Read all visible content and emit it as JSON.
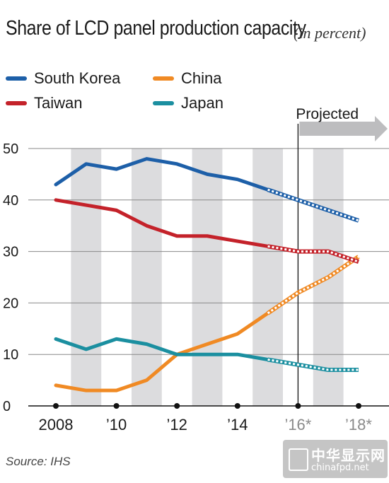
{
  "title": "Share of LCD panel production capacity",
  "subtitle": "(in percent)",
  "source": "Source: IHS",
  "projected_label": "Projected",
  "watermark": {
    "text": "中华显示网",
    "url": "chinafpd.net"
  },
  "colors": {
    "south_korea": "#1d5fa8",
    "taiwan": "#c4222a",
    "china": "#f08a24",
    "japan": "#1b8fa0",
    "shade": "#dcdcde",
    "grid": "#888888"
  },
  "chart_data": {
    "type": "line",
    "x": [
      2008,
      2009,
      2010,
      2011,
      2012,
      2013,
      2014,
      2015,
      2016,
      2017,
      2018
    ],
    "x_tick_values": [
      2008,
      2010,
      2012,
      2014,
      2016,
      2018
    ],
    "x_tick_labels": [
      "2008",
      "’10",
      "’12",
      "’14",
      "’16*",
      "’18*"
    ],
    "ylim": [
      0,
      50
    ],
    "y_ticks": [
      0,
      10,
      20,
      30,
      40,
      50
    ],
    "projection_start": 2016,
    "grid": true,
    "legend": "top-left",
    "series": [
      {
        "name": "South Korea",
        "key": "south_korea",
        "values": [
          43,
          47,
          46,
          48,
          47,
          45,
          44,
          42,
          40,
          38,
          36
        ]
      },
      {
        "name": "Taiwan",
        "key": "taiwan",
        "values": [
          40,
          39,
          38,
          35,
          33,
          33,
          32,
          31,
          30,
          30,
          28
        ]
      },
      {
        "name": "China",
        "key": "china",
        "values": [
          4,
          3,
          3,
          5,
          10,
          12,
          14,
          18,
          22,
          25,
          29
        ]
      },
      {
        "name": "Japan",
        "key": "japan",
        "values": [
          13,
          11,
          13,
          12,
          10,
          10,
          10,
          9,
          8,
          7,
          7
        ]
      }
    ]
  }
}
